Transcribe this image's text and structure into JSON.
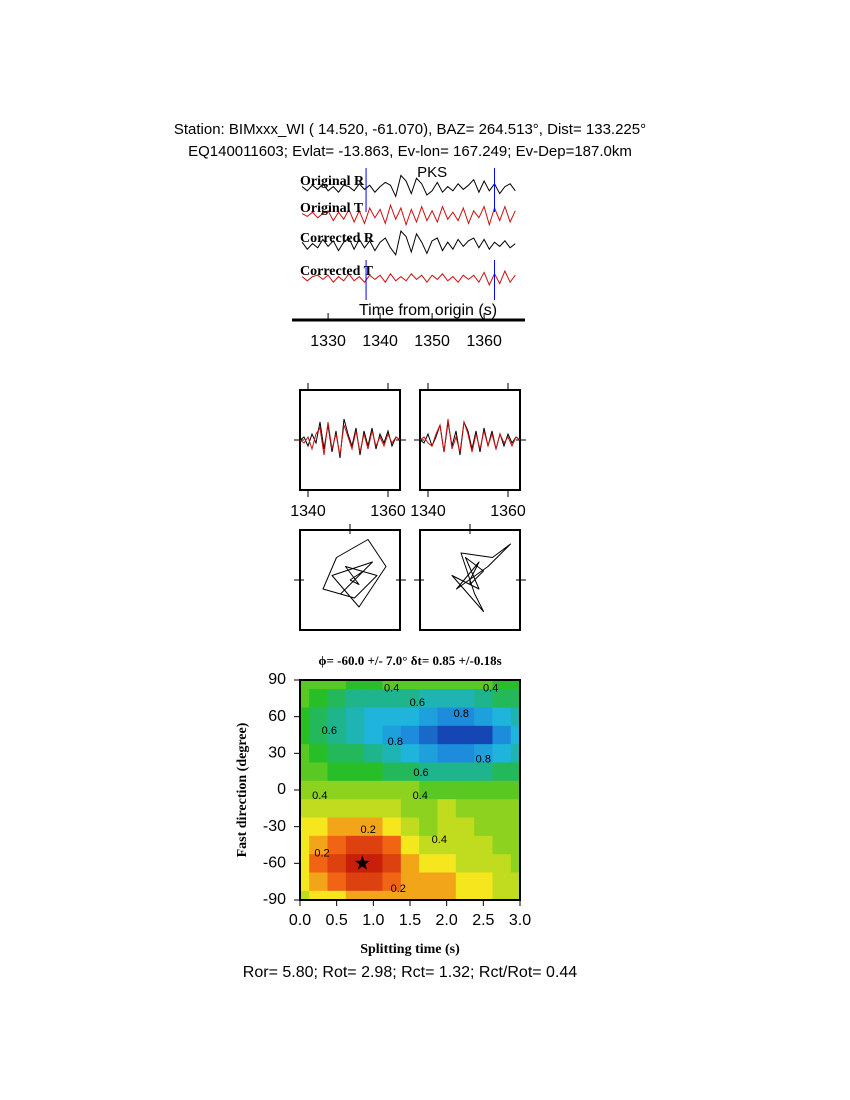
{
  "header": {
    "line1": "Station: BIMxxx_WI (  14.520,  -61.070), BAZ=  264.513°, Dist=  133.225°",
    "line2": "EQ140011603; Evlat= -13.863, Ev-lon= 167.249; Ev-Dep=187.0km"
  },
  "footer": "Ror= 5.80; Rot= 2.98; Rct= 1.32; Rct/Rot= 0.44",
  "chart_data": [
    {
      "type": "traces",
      "xlabel": "Time from origin (s)",
      "xlim": [
        1324.6,
        1366.9
      ],
      "xticks": [
        1330,
        1340,
        1350,
        1360
      ],
      "x": [
        1325,
        1326,
        1327,
        1328,
        1329,
        1330,
        1331,
        1332,
        1333,
        1334,
        1335,
        1336,
        1337,
        1338,
        1339,
        1340,
        1341,
        1342,
        1343,
        1344,
        1345,
        1346,
        1347,
        1348,
        1349,
        1350,
        1351,
        1352,
        1353,
        1354,
        1355,
        1356,
        1357,
        1358,
        1359,
        1360,
        1361,
        1362,
        1363,
        1364,
        1365,
        1366
      ],
      "series": [
        {
          "name": "Original R",
          "color": "#000000",
          "values": [
            0.1,
            -0.2,
            0.2,
            -0.1,
            0.3,
            -0.2,
            0.1,
            -0.3,
            0.2,
            0.1,
            -0.2,
            0.3,
            -0.1,
            0.2,
            -0.3,
            0.1,
            0.4,
            0.2,
            -0.6,
            0.9,
            0.5,
            -0.4,
            0.7,
            0.3,
            -0.5,
            -0.2,
            0.4,
            -0.3,
            0.1,
            -0.2,
            0.3,
            -0.1,
            0.2,
            0.6,
            -0.3,
            0.5,
            -0.2,
            0.3,
            -0.4,
            0.1,
            0.3,
            -0.2
          ]
        },
        {
          "name": "Original T",
          "color": "#d01010",
          "values": [
            0.1,
            -0.1,
            0.2,
            -0.2,
            0.1,
            0.3,
            -0.4,
            0.2,
            -0.3,
            0.4,
            -0.5,
            0.3,
            -0.6,
            0.5,
            -0.2,
            0.4,
            -0.6,
            0.7,
            -0.3,
            0.5,
            -0.7,
            0.4,
            -0.5,
            0.6,
            -0.4,
            0.3,
            -0.5,
            0.6,
            -0.3,
            0.2,
            -0.4,
            0.5,
            -0.6,
            0.3,
            -0.2,
            0.6,
            -0.7,
            0.5,
            -0.4,
            0.6,
            -0.5,
            0.3
          ]
        },
        {
          "name": "Corrected R",
          "color": "#000000",
          "values": [
            0.2,
            -0.3,
            0.1,
            -0.2,
            0.4,
            -0.1,
            0.3,
            -0.4,
            0.2,
            0.5,
            -0.3,
            0.4,
            -0.2,
            0.3,
            -0.4,
            0.2,
            0.5,
            -0.2,
            -0.7,
            1.0,
            0.6,
            -0.5,
            0.8,
            0.2,
            -0.6,
            0.3,
            0.5,
            -0.4,
            0.2,
            -0.3,
            0.4,
            -0.1,
            0.3,
            0.5,
            -0.2,
            0.4,
            -0.3,
            0.2,
            -0.1,
            0.3,
            -0.2,
            0.1
          ]
        },
        {
          "name": "Corrected T",
          "color": "#d01010",
          "values": [
            0.1,
            -0.2,
            0.1,
            0.2,
            -0.1,
            0.2,
            -0.3,
            0.1,
            -0.2,
            0.3,
            -0.2,
            0.1,
            -0.3,
            0.2,
            -0.1,
            0.2,
            -0.3,
            0.3,
            -0.2,
            0.1,
            -0.2,
            0.3,
            -0.1,
            0.2,
            -0.3,
            0.2,
            -0.1,
            0.3,
            -0.2,
            0.1,
            -0.3,
            0.2,
            -0.1,
            0.2,
            -0.3,
            0.4,
            -0.5,
            0.3,
            -0.4,
            0.5,
            -0.3,
            0.2
          ]
        }
      ],
      "markers": [
        1337.3,
        1362.0
      ],
      "marker_color": "#0000ff",
      "phase": {
        "label": "PKS",
        "x": 1350,
        "color": "#e00000"
      }
    },
    {
      "type": "overlay",
      "xlim": [
        1338,
        1363
      ],
      "xticks": [
        1340,
        1360
      ],
      "x": [
        1338,
        1339,
        1340,
        1341,
        1342,
        1343,
        1344,
        1345,
        1346,
        1347,
        1348,
        1349,
        1350,
        1351,
        1352,
        1353,
        1354,
        1355,
        1356,
        1357,
        1358,
        1359,
        1360,
        1361,
        1362,
        1363
      ],
      "panels": [
        {
          "series": [
            {
              "color": "#000000",
              "values": [
                0,
                0.1,
                -0.2,
                0.2,
                -0.1,
                0.6,
                -0.3,
                0.5,
                -0.4,
                0.3,
                -0.6,
                0.7,
                0.2,
                -0.2,
                0.4,
                -0.5,
                0.3,
                -0.2,
                0.4,
                -0.3,
                0.2,
                -0.1,
                0.3,
                -0.2,
                0.1,
                0
              ]
            },
            {
              "color": "#d01010",
              "values": [
                0,
                -0.1,
                0.1,
                -0.3,
                0.2,
                0.4,
                -0.5,
                0.6,
                -0.3,
                0.2,
                -0.5,
                0.5,
                0.1,
                -0.3,
                0.3,
                -0.4,
                0.2,
                -0.3,
                0.3,
                -0.2,
                0.1,
                -0.2,
                0.2,
                -0.1,
                0.1,
                0
              ]
            }
          ]
        },
        {
          "series": [
            {
              "color": "#000000",
              "values": [
                0,
                -0.1,
                0.2,
                -0.2,
                0.1,
                0.5,
                -0.4,
                0.6,
                -0.2,
                0.3,
                -0.5,
                0.6,
                0.3,
                -0.3,
                0.3,
                -0.4,
                0.4,
                -0.2,
                0.3,
                -0.3,
                0.2,
                -0.2,
                0.2,
                -0.1,
                0.1,
                0
              ]
            },
            {
              "color": "#d01010",
              "values": [
                0,
                0.1,
                -0.1,
                -0.2,
                0.2,
                0.5,
                -0.4,
                0.7,
                -0.3,
                0.1,
                -0.4,
                0.6,
                0.2,
                -0.4,
                0.2,
                -0.3,
                0.3,
                -0.2,
                0.2,
                -0.3,
                0.2,
                -0.1,
                0.1,
                -0.2,
                0.1,
                0
              ]
            }
          ]
        }
      ]
    },
    {
      "type": "particle-motion",
      "xlim": [
        -1,
        1
      ],
      "ylim": [
        -1,
        1
      ],
      "panels": [
        {
          "x": [
            0,
            0.3,
            -0.2,
            0.5,
            -0.4,
            0.2,
            0.8,
            0.4,
            -0.3,
            -0.6,
            0.1,
            0.6,
            -0.1,
            0.2,
            0
          ],
          "values": [
            0,
            0.2,
            -0.3,
            0.4,
            0.1,
            -0.6,
            0.3,
            0.9,
            0.5,
            -0.2,
            -0.4,
            0.1,
            0.3,
            -0.1,
            0
          ]
        },
        {
          "x": [
            0,
            0.2,
            -0.3,
            0.4,
            0.9,
            0.5,
            -0.2,
            0.1,
            0.3,
            -0.4,
            0.2,
            -0.1,
            0.3,
            0,
            0
          ],
          "values": [
            0,
            0.4,
            -0.2,
            0.3,
            0.8,
            0.5,
            0.6,
            -0.3,
            -0.7,
            0.1,
            -0.2,
            0.5,
            0.2,
            -0.1,
            0
          ]
        }
      ]
    },
    {
      "type": "contour",
      "title": "ϕ= -60.0 +/- 7.0° δt= 0.85 +/-0.18s",
      "xlabel": "Splitting time (s)",
      "ylabel": "Fast direction (degree)",
      "xlim": [
        0,
        3
      ],
      "ylim": [
        -90,
        90
      ],
      "xticks": [
        {
          "value": 0,
          "label": "0.0"
        },
        0.5,
        {
          "value": 1,
          "label": "1.0"
        },
        1.5,
        {
          "value": 2,
          "label": "2.0"
        },
        2.5,
        {
          "value": 3,
          "label": "3.0"
        }
      ],
      "yticks": [
        -90,
        -60,
        -30,
        0,
        30,
        60,
        90
      ],
      "x_grid": [
        0,
        0.25,
        0.5,
        0.75,
        1,
        1.25,
        1.5,
        1.75,
        2,
        2.25,
        2.5,
        2.75,
        3
      ],
      "y_grid": [
        90,
        75,
        60,
        45,
        30,
        15,
        0,
        -15,
        -30,
        -45,
        -60,
        -75,
        -90
      ],
      "z": [
        [
          0.45,
          0.45,
          0.45,
          0.5,
          0.5,
          0.45,
          0.45,
          0.45,
          0.45,
          0.45,
          0.45,
          0.5,
          0.5
        ],
        [
          0.45,
          0.5,
          0.55,
          0.6,
          0.6,
          0.6,
          0.6,
          0.65,
          0.65,
          0.65,
          0.6,
          0.55,
          0.55
        ],
        [
          0.5,
          0.55,
          0.6,
          0.65,
          0.7,
          0.7,
          0.7,
          0.75,
          0.8,
          0.8,
          0.75,
          0.7,
          0.65
        ],
        [
          0.5,
          0.55,
          0.6,
          0.65,
          0.7,
          0.75,
          0.8,
          0.85,
          0.9,
          0.95,
          0.9,
          0.8,
          0.7
        ],
        [
          0.45,
          0.5,
          0.55,
          0.55,
          0.6,
          0.65,
          0.7,
          0.75,
          0.8,
          0.8,
          0.75,
          0.7,
          0.65
        ],
        [
          0.45,
          0.45,
          0.5,
          0.5,
          0.5,
          0.55,
          0.55,
          0.6,
          0.6,
          0.6,
          0.6,
          0.55,
          0.55
        ],
        [
          0.4,
          0.4,
          0.4,
          0.4,
          0.4,
          0.4,
          0.4,
          0.45,
          0.45,
          0.45,
          0.45,
          0.45,
          0.45
        ],
        [
          0.35,
          0.35,
          0.35,
          0.35,
          0.35,
          0.35,
          0.4,
          0.4,
          0.35,
          0.4,
          0.4,
          0.4,
          0.4
        ],
        [
          0.3,
          0.3,
          0.25,
          0.25,
          0.25,
          0.3,
          0.35,
          0.4,
          0.35,
          0.35,
          0.4,
          0.4,
          0.4
        ],
        [
          0.3,
          0.25,
          0.2,
          0.15,
          0.15,
          0.2,
          0.3,
          0.35,
          0.35,
          0.35,
          0.35,
          0.4,
          0.4
        ],
        [
          0.3,
          0.2,
          0.15,
          0.1,
          0.1,
          0.15,
          0.25,
          0.3,
          0.3,
          0.35,
          0.35,
          0.35,
          0.4
        ],
        [
          0.3,
          0.25,
          0.2,
          0.15,
          0.15,
          0.2,
          0.25,
          0.25,
          0.25,
          0.3,
          0.3,
          0.35,
          0.35
        ],
        [
          0.35,
          0.3,
          0.3,
          0.25,
          0.25,
          0.25,
          0.25,
          0.25,
          0.25,
          0.3,
          0.3,
          0.35,
          0.35
        ]
      ],
      "colorscale": [
        [
          0.1,
          "#c81e0a"
        ],
        [
          0.2,
          "#f06414"
        ],
        [
          0.3,
          "#f5e61e"
        ],
        [
          0.4,
          "#8cd21e"
        ],
        [
          0.5,
          "#28be28"
        ],
        [
          0.6,
          "#1eb48c"
        ],
        [
          0.7,
          "#1eb4dc"
        ],
        [
          0.8,
          "#1e8cdc"
        ],
        [
          0.9,
          "#1446b4"
        ]
      ],
      "best": {
        "x": 0.85,
        "y": -60
      },
      "contour_labels": [
        {
          "text": "0.4",
          "x": 1.25,
          "y": 83
        },
        {
          "text": "0.6",
          "x": 1.6,
          "y": 71
        },
        {
          "text": "0.4",
          "x": 2.6,
          "y": 83
        },
        {
          "text": "0.8",
          "x": 2.2,
          "y": 62
        },
        {
          "text": "0.6",
          "x": 0.4,
          "y": 48
        },
        {
          "text": "0.8",
          "x": 1.3,
          "y": 39
        },
        {
          "text": "0.6",
          "x": 1.65,
          "y": 14
        },
        {
          "text": "0.8",
          "x": 2.5,
          "y": 25
        },
        {
          "text": "0.4",
          "x": 0.27,
          "y": -5
        },
        {
          "text": "0.4",
          "x": 1.64,
          "y": -5
        },
        {
          "text": "0.2",
          "x": 0.93,
          "y": -33
        },
        {
          "text": "0.4",
          "x": 1.9,
          "y": -41
        },
        {
          "text": "0.2",
          "x": 0.3,
          "y": -52
        },
        {
          "text": "0.2",
          "x": 1.34,
          "y": -81
        }
      ]
    }
  ]
}
